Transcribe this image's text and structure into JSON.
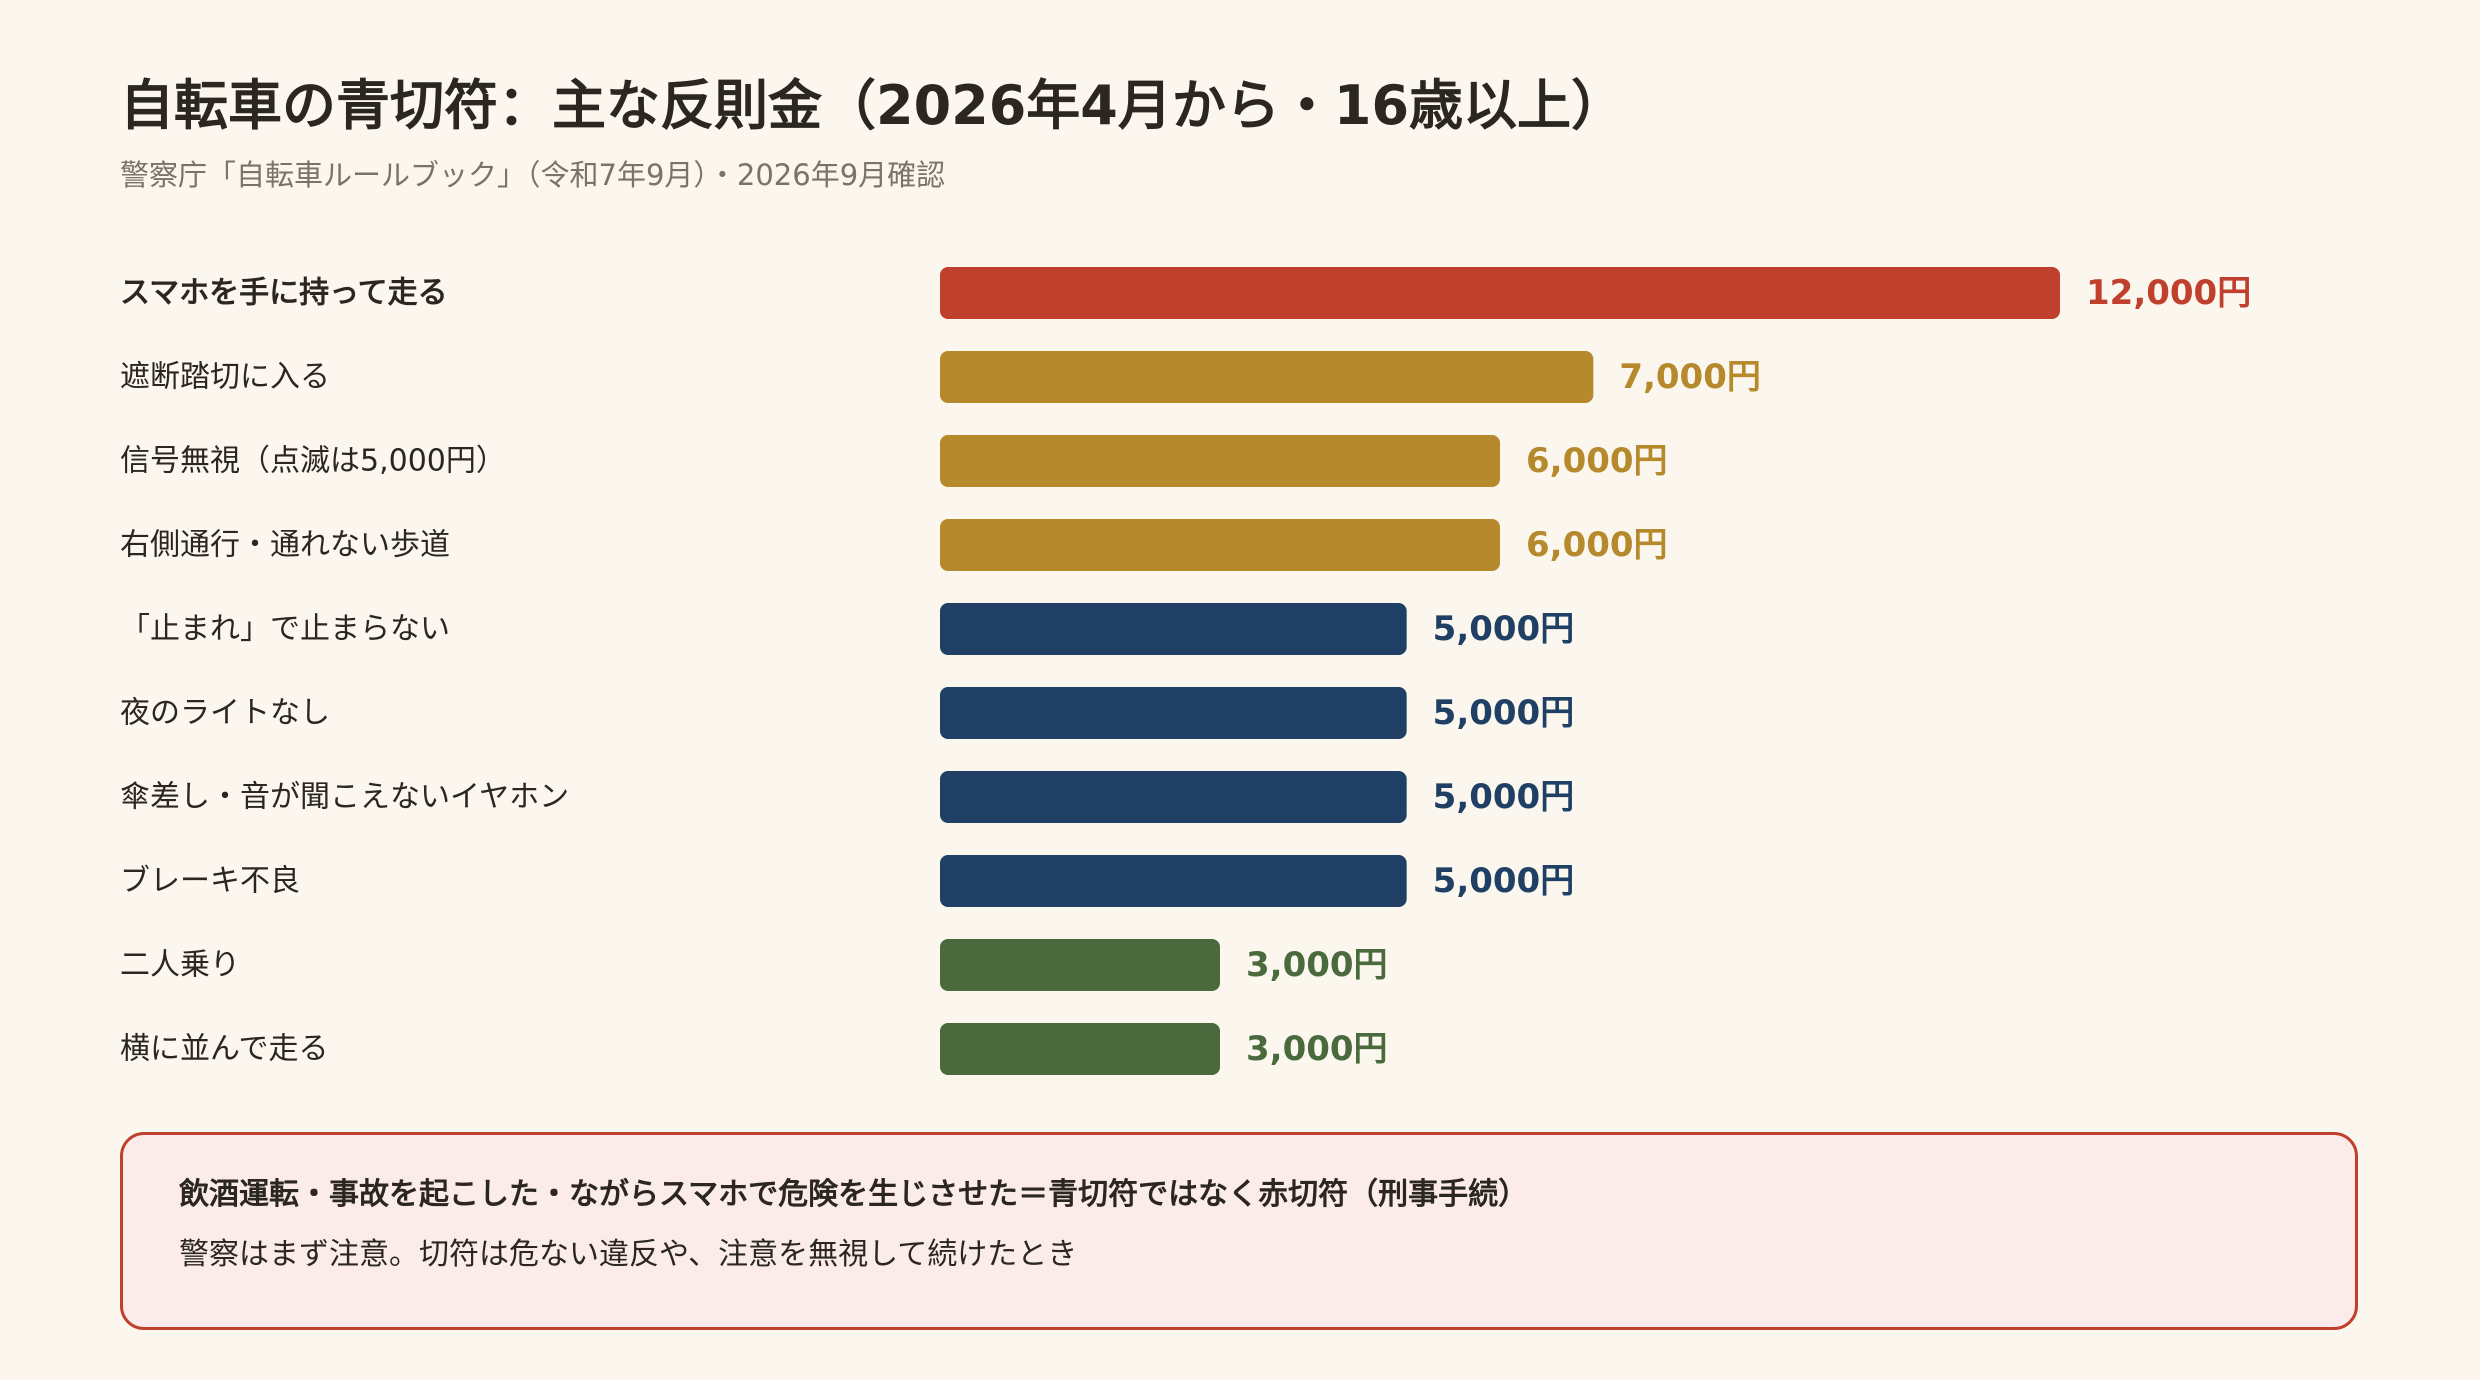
{
  "header": {
    "title": "自転車の青切符：主な反則金（2026年4月から・16歳以上）",
    "subtitle": "警察庁「自転車ルールブック」（令和7年9月）・2026年9月確認"
  },
  "chart_data": {
    "type": "bar",
    "orientation": "horizontal",
    "title": "自転車の青切符：主な反則金（2026年4月から・16歳以上）",
    "subtitle": "警察庁「自転車ルールブック」（令和7年9月）・2026年9月確認",
    "unit": "円",
    "xlim": [
      0,
      12000
    ],
    "grid": false,
    "legend": "none",
    "categories": [
      "スマホを手に持って走る",
      "遮断踏切に入る",
      "信号無視（点滅は5,000円）",
      "右側通行・通れない歩道",
      "「止まれ」で止まらない",
      "夜のライトなし",
      "傘差し・音が聞こえないイヤホン",
      "ブレーキ不良",
      "二人乗り",
      "横に並んで走る"
    ],
    "values": [
      12000,
      7000,
      6000,
      6000,
      5000,
      5000,
      5000,
      5000,
      3000,
      3000
    ],
    "value_labels": [
      "12,000円",
      "7,000円",
      "6,000円",
      "6,000円",
      "5,000円",
      "5,000円",
      "5,000円",
      "5,000円",
      "3,000円",
      "3,000円"
    ],
    "bar_colors": [
      "#c0402e",
      "#b5892c",
      "#b5892c",
      "#b5892c",
      "#1f4064",
      "#1f4064",
      "#1f4064",
      "#1f4064",
      "#4a6a3e",
      "#4a6a3e"
    ],
    "highlight_index": 0
  },
  "note": {
    "heading": "飲酒運転・事故を起こした・ながらスマホで危険を生じさせた＝青切符ではなく赤切符（刑事手続）",
    "body": "警察はまず注意。切符は危ない違反や、注意を無視して続けたとき"
  },
  "colors": {
    "background": "#fbf7ee",
    "note_background": "#fbeceb",
    "note_border": "#c0402e",
    "text": "#2b2620",
    "subtext": "#7a736a"
  }
}
